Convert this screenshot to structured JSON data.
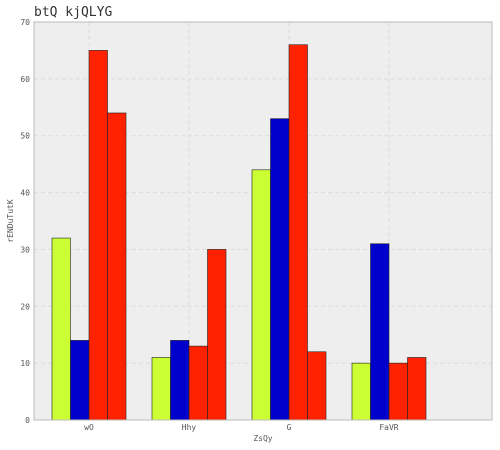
{
  "chart_data": {
    "type": "bar",
    "title": "btQ kjQLYG",
    "xlabel": "ZsQy",
    "ylabel": "rENDuTutK",
    "categories": [
      "wO",
      "Hhy",
      "G",
      "FaVR"
    ],
    "series": [
      {
        "values": [
          32,
          11,
          44,
          10
        ],
        "color": "#ccff33"
      },
      {
        "values": [
          14,
          14,
          53,
          31
        ],
        "color": "#0000cc"
      },
      {
        "values": [
          65,
          13,
          66,
          10
        ],
        "color": "#ff2200"
      },
      {
        "values": [
          54,
          30,
          12,
          11
        ],
        "color": "#ff2200"
      }
    ],
    "ylim": [
      0,
      70
    ],
    "yticks": [
      0,
      10,
      20,
      30,
      40,
      50,
      60,
      70
    ],
    "grid": true,
    "plot_background": "#eeeeee"
  }
}
